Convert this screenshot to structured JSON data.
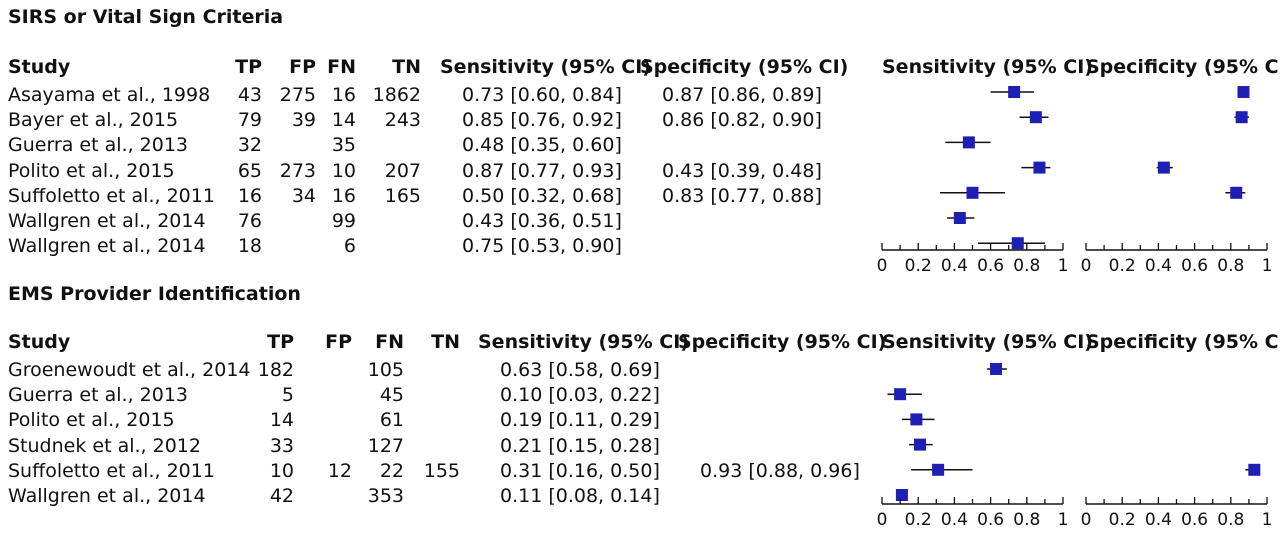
{
  "columns": {
    "study": "Study",
    "tp": "TP",
    "fp": "FP",
    "fn": "FN",
    "tn": "TN",
    "sensitivity": "Sensitivity (95% CI)",
    "specificity": "Specificity (95% CI)"
  },
  "axis_ticks": [
    "0",
    "0.2",
    "0.4",
    "0.6",
    "0.8",
    "1"
  ],
  "marker_color": "#1f1fb4",
  "sections": [
    {
      "title": "SIRS or Vital Sign Criteria",
      "rows": [
        {
          "study": "Asayama et al., 1998",
          "tp": "43",
          "fp": "275",
          "fn": "16",
          "tn": "1862",
          "sens_text": "0.73 [0.60, 0.84]",
          "spec_text": "0.87 [0.86, 0.89]",
          "sens": [
            0.73,
            0.6,
            0.84
          ],
          "spec": [
            0.87,
            0.86,
            0.89
          ]
        },
        {
          "study": "Bayer et al., 2015",
          "tp": "79",
          "fp": "39",
          "fn": "14",
          "tn": "243",
          "sens_text": "0.85 [0.76, 0.92]",
          "spec_text": "0.86 [0.82, 0.90]",
          "sens": [
            0.85,
            0.76,
            0.92
          ],
          "spec": [
            0.86,
            0.82,
            0.9
          ]
        },
        {
          "study": "Guerra et al., 2013",
          "tp": "32",
          "fp": "",
          "fn": "35",
          "tn": "",
          "sens_text": "0.48 [0.35, 0.60]",
          "spec_text": "",
          "sens": [
            0.48,
            0.35,
            0.6
          ],
          "spec": null
        },
        {
          "study": "Polito et al., 2015",
          "tp": "65",
          "fp": "273",
          "fn": "10",
          "tn": "207",
          "sens_text": "0.87 [0.77, 0.93]",
          "spec_text": "0.43 [0.39, 0.48]",
          "sens": [
            0.87,
            0.77,
            0.93
          ],
          "spec": [
            0.43,
            0.39,
            0.48
          ]
        },
        {
          "study": "Suffoletto et al., 2011",
          "tp": "16",
          "fp": "34",
          "fn": "16",
          "tn": "165",
          "sens_text": "0.50 [0.32, 0.68]",
          "spec_text": "0.83 [0.77, 0.88]",
          "sens": [
            0.5,
            0.32,
            0.68
          ],
          "spec": [
            0.83,
            0.77,
            0.88
          ]
        },
        {
          "study": "Wallgren et al., 2014",
          "tp": "76",
          "fp": "",
          "fn": "99",
          "tn": "",
          "sens_text": "0.43 [0.36, 0.51]",
          "spec_text": "",
          "sens": [
            0.43,
            0.36,
            0.51
          ],
          "spec": null
        },
        {
          "study": "Wallgren et al., 2014",
          "tp": "18",
          "fp": "",
          "fn": "6",
          "tn": "",
          "sens_text": "0.75 [0.53, 0.90]",
          "spec_text": "",
          "sens": [
            0.75,
            0.53,
            0.9
          ],
          "spec": null
        }
      ]
    },
    {
      "title": "EMS Provider Identification",
      "rows": [
        {
          "study": "Groenewoudt et al., 2014",
          "tp": "182",
          "fp": "",
          "fn": "105",
          "tn": "",
          "sens_text": "0.63 [0.58, 0.69]",
          "spec_text": "",
          "sens": [
            0.63,
            0.58,
            0.69
          ],
          "spec": null
        },
        {
          "study": "Guerra et al., 2013",
          "tp": "5",
          "fp": "",
          "fn": "45",
          "tn": "",
          "sens_text": "0.10 [0.03, 0.22]",
          "spec_text": "",
          "sens": [
            0.1,
            0.03,
            0.22
          ],
          "spec": null
        },
        {
          "study": "Polito et al., 2015",
          "tp": "14",
          "fp": "",
          "fn": "61",
          "tn": "",
          "sens_text": "0.19 [0.11, 0.29]",
          "spec_text": "",
          "sens": [
            0.19,
            0.11,
            0.29
          ],
          "spec": null
        },
        {
          "study": "Studnek et al., 2012",
          "tp": "33",
          "fp": "",
          "fn": "127",
          "tn": "",
          "sens_text": "0.21 [0.15, 0.28]",
          "spec_text": "",
          "sens": [
            0.21,
            0.15,
            0.28
          ],
          "spec": null
        },
        {
          "study": "Suffoletto et al., 2011",
          "tp": "10",
          "fp": "12",
          "fn": "22",
          "tn": "155",
          "sens_text": "0.31 [0.16, 0.50]",
          "spec_text": "0.93 [0.88, 0.96]",
          "sens": [
            0.31,
            0.16,
            0.5
          ],
          "spec": [
            0.93,
            0.88,
            0.96
          ]
        },
        {
          "study": "Wallgren et al., 2014",
          "tp": "42",
          "fp": "",
          "fn": "353",
          "tn": "",
          "sens_text": "0.11 [0.08, 0.14]",
          "spec_text": "",
          "sens": [
            0.11,
            0.08,
            0.14
          ],
          "spec": null
        }
      ]
    }
  ],
  "chart_data": {
    "type": "forest",
    "xlim": [
      0,
      1
    ],
    "ticks": [
      0,
      0.2,
      0.4,
      0.6,
      0.8,
      1
    ],
    "panels": [
      {
        "section": "SIRS or Vital Sign Criteria",
        "sensitivity": [
          [
            0.73,
            0.6,
            0.84
          ],
          [
            0.85,
            0.76,
            0.92
          ],
          [
            0.48,
            0.35,
            0.6
          ],
          [
            0.87,
            0.77,
            0.93
          ],
          [
            0.5,
            0.32,
            0.68
          ],
          [
            0.43,
            0.36,
            0.51
          ],
          [
            0.75,
            0.53,
            0.9
          ]
        ],
        "specificity": [
          [
            0.87,
            0.86,
            0.89
          ],
          [
            0.86,
            0.82,
            0.9
          ],
          null,
          [
            0.43,
            0.39,
            0.48
          ],
          [
            0.83,
            0.77,
            0.88
          ],
          null,
          null
        ]
      },
      {
        "section": "EMS Provider Identification",
        "sensitivity": [
          [
            0.63,
            0.58,
            0.69
          ],
          [
            0.1,
            0.03,
            0.22
          ],
          [
            0.19,
            0.11,
            0.29
          ],
          [
            0.21,
            0.15,
            0.28
          ],
          [
            0.31,
            0.16,
            0.5
          ],
          [
            0.11,
            0.08,
            0.14
          ]
        ],
        "specificity": [
          null,
          null,
          null,
          null,
          [
            0.93,
            0.88,
            0.96
          ],
          null
        ]
      }
    ]
  }
}
